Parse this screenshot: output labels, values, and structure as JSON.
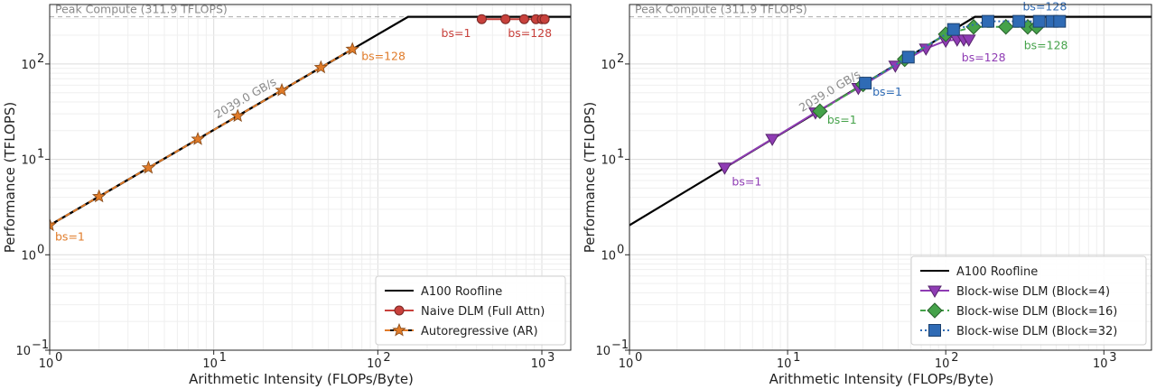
{
  "colors": {
    "roofline": "#000000",
    "naive": "#c8413c",
    "ar": "#e07b29",
    "block4": "#8f3cb4",
    "block16": "#45a24a",
    "block32": "#2f6bb5",
    "peak_line": "#aaaaaa",
    "grid": "#e6e6e6"
  },
  "chart_data": [
    {
      "type": "line",
      "scale": "log-log",
      "xlabel": "Arithmetic Intensity (FLOPs/Byte)",
      "ylabel": "Performance (TFLOPS)",
      "xlim": [
        1,
        1500
      ],
      "ylim": [
        0.1,
        420
      ],
      "xticks": [
        {
          "value": 1,
          "label": "10",
          "exp": "0"
        },
        {
          "value": 10,
          "label": "10",
          "exp": "1"
        },
        {
          "value": 100,
          "label": "10",
          "exp": "2"
        },
        {
          "value": 1000,
          "label": "10",
          "exp": "3"
        }
      ],
      "yticks": [
        {
          "value": 0.1,
          "label": "10",
          "exp": "−1"
        },
        {
          "value": 1,
          "label": "10",
          "exp": "0"
        },
        {
          "value": 10,
          "label": "10",
          "exp": "1"
        },
        {
          "value": 100,
          "label": "10",
          "exp": "2"
        }
      ],
      "peak_label": "Peak Compute (311.9 TFLOPS)",
      "peak_value": 311.9,
      "bandwidth_label": "2039.0 GB/s",
      "roofline": {
        "name": "A100 Roofline",
        "x": [
          1,
          152.96,
          1500
        ],
        "y": [
          2.039,
          311.9,
          311.9
        ]
      },
      "series": [
        {
          "name": "Naive DLM (Full Attn)",
          "marker": "circle",
          "color_key": "naive",
          "dashed": false,
          "x": [
            430,
            600,
            780,
            920,
            1000,
            1040
          ],
          "y": [
            295,
            295,
            295,
            295,
            295,
            295
          ]
        },
        {
          "name": "Autoregressive (AR)",
          "marker": "star",
          "color_key": "ar",
          "dashed": true,
          "x": [
            1,
            2,
            4,
            8,
            14,
            26,
            45,
            70
          ],
          "y": [
            2.04,
            4.08,
            8.16,
            16.3,
            28.5,
            53,
            92,
            143
          ]
        }
      ],
      "annotations": [
        {
          "text": "bs=1",
          "x": 1,
          "y": 2.04,
          "color_key": "ar",
          "anchor": "start",
          "dx": 6,
          "dy": 17
        },
        {
          "text": "bs=128",
          "x": 70,
          "y": 143,
          "color_key": "ar",
          "anchor": "start",
          "dx": 10,
          "dy": 12
        },
        {
          "text": "bs=1",
          "x": 430,
          "y": 295,
          "color_key": "naive",
          "anchor": "end",
          "dx": -12,
          "dy": 20
        },
        {
          "text": "bs=128",
          "x": 1040,
          "y": 295,
          "color_key": "naive",
          "anchor": "end",
          "dx": 8,
          "dy": 20
        }
      ],
      "legend": {
        "position": "lower-right",
        "entries": [
          "A100 Roofline",
          "Naive DLM (Full Attn)",
          "Autoregressive (AR)"
        ]
      }
    },
    {
      "type": "line",
      "scale": "log-log",
      "xlabel": "Arithmetic Intensity (FLOPs/Byte)",
      "ylabel": "Performance (TFLOPS)",
      "xlim": [
        1,
        2000
      ],
      "ylim": [
        0.1,
        420
      ],
      "xticks": [
        {
          "value": 1,
          "label": "10",
          "exp": "0"
        },
        {
          "value": 10,
          "label": "10",
          "exp": "1"
        },
        {
          "value": 100,
          "label": "10",
          "exp": "2"
        },
        {
          "value": 1000,
          "label": "10",
          "exp": "3"
        }
      ],
      "yticks": [
        {
          "value": 0.1,
          "label": "10",
          "exp": "−1"
        },
        {
          "value": 1,
          "label": "10",
          "exp": "0"
        },
        {
          "value": 10,
          "label": "10",
          "exp": "1"
        },
        {
          "value": 100,
          "label": "10",
          "exp": "2"
        }
      ],
      "peak_label": "Peak Compute (311.9 TFLOPS)",
      "peak_value": 311.9,
      "bandwidth_label": "2039.0 GB/s",
      "roofline": {
        "name": "A100 Roofline",
        "x": [
          1,
          152.96,
          2000
        ],
        "y": [
          2.039,
          311.9,
          311.9
        ]
      },
      "series": [
        {
          "name": "Block-wise DLM (Block=4)",
          "marker": "triangle-down",
          "color_key": "block4",
          "dashed": false,
          "x": [
            4,
            8,
            15,
            28,
            48,
            75,
            100,
            118,
            130,
            140
          ],
          "y": [
            8.2,
            16.4,
            31,
            56,
            96,
            145,
            175,
            180,
            180,
            180
          ]
        },
        {
          "name": "Block-wise DLM (Block=16)",
          "marker": "diamond",
          "color_key": "block16",
          "dashed": true,
          "x": [
            16,
            30,
            55,
            100,
            150,
            240,
            330,
            375
          ],
          "y": [
            32,
            61,
            112,
            205,
            245,
            245,
            245,
            245
          ]
        },
        {
          "name": "Block-wise DLM (Block=32)",
          "marker": "square",
          "color_key": "block32",
          "dashed": true,
          "dotted": true,
          "x": [
            31,
            58,
            112,
            185,
            290,
            390,
            470,
            525
          ],
          "y": [
            63,
            118,
            230,
            280,
            280,
            280,
            280,
            280
          ]
        }
      ],
      "annotations": [
        {
          "text": "bs=1",
          "x": 4,
          "y": 8.2,
          "color_key": "block4",
          "anchor": "start",
          "dx": 8,
          "dy": 20
        },
        {
          "text": "bs=128",
          "x": 140,
          "y": 180,
          "color_key": "block4",
          "anchor": "start",
          "dx": -8,
          "dy": 24
        },
        {
          "text": "bs=1",
          "x": 16,
          "y": 32,
          "color_key": "block16",
          "anchor": "start",
          "dx": 8,
          "dy": 14
        },
        {
          "text": "bs=128",
          "x": 375,
          "y": 245,
          "color_key": "block16",
          "anchor": "start",
          "dx": -14,
          "dy": 25
        },
        {
          "text": "bs=1",
          "x": 31,
          "y": 63,
          "color_key": "block32",
          "anchor": "start",
          "dx": 8,
          "dy": 14
        },
        {
          "text": "bs=128",
          "x": 525,
          "y": 280,
          "color_key": "block32",
          "anchor": "end",
          "dx": 8,
          "dy": -12
        }
      ],
      "legend": {
        "position": "lower-right",
        "entries": [
          "A100 Roofline",
          "Block-wise DLM (Block=4)",
          "Block-wise DLM (Block=16)",
          "Block-wise DLM (Block=32)"
        ]
      }
    }
  ]
}
